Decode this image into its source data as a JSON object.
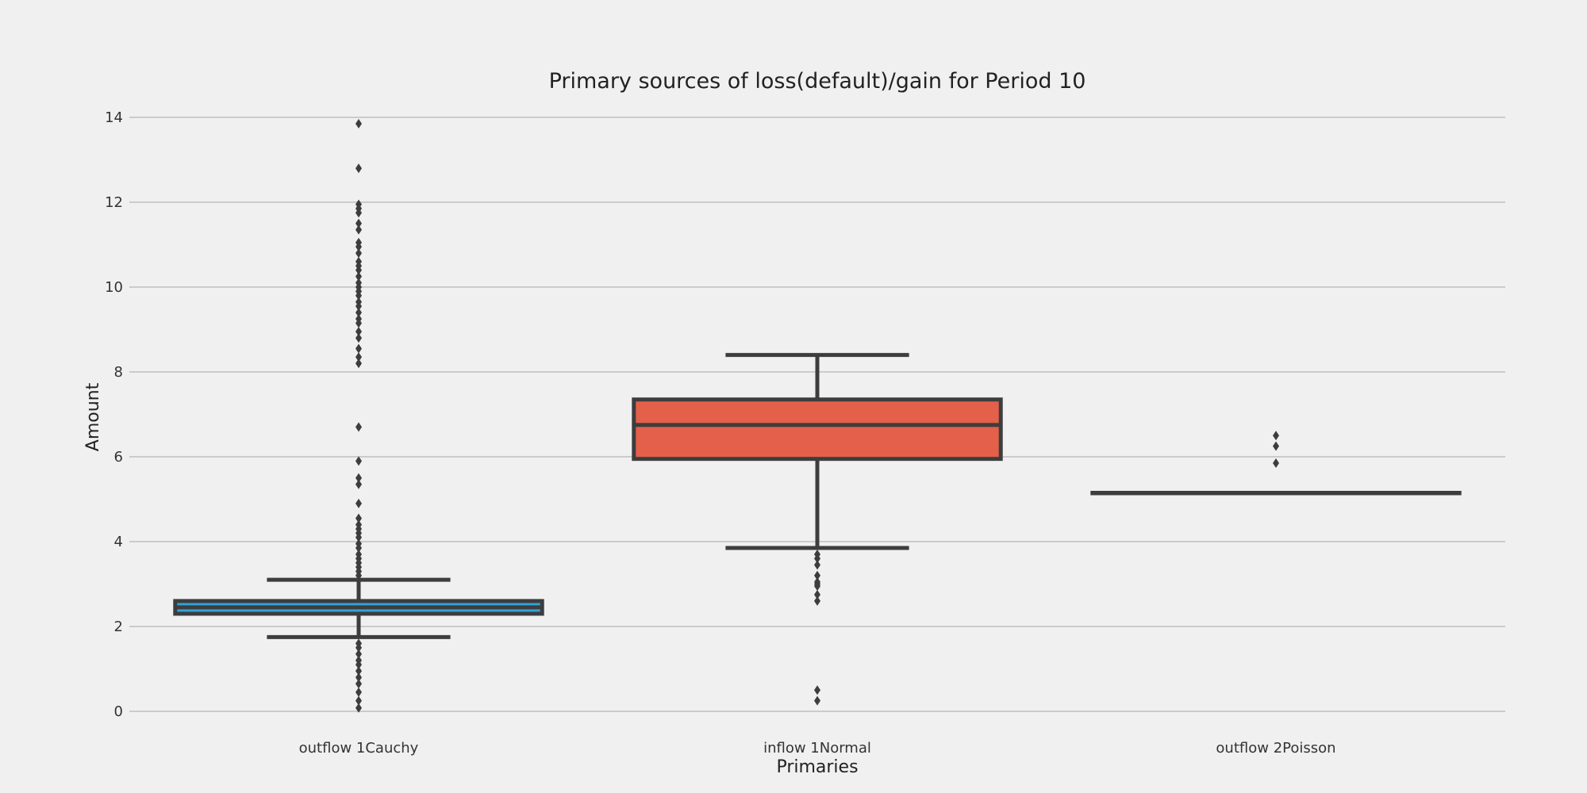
{
  "chart_data": {
    "type": "box",
    "title": "Primary sources of loss(default)/gain for Period 10",
    "xlabel": "Primaries",
    "ylabel": "Amount",
    "ylim": [
      0,
      14
    ],
    "yticks": [
      0,
      2,
      4,
      6,
      8,
      10,
      12,
      14
    ],
    "grid": true,
    "series": [
      {
        "name": "outflow 1Cauchy",
        "color": "#30a2da",
        "q1": 2.3,
        "median": 2.45,
        "q3": 2.6,
        "whisker_low": 1.75,
        "whisker_high": 3.1,
        "outliers": [
          13.85,
          12.8,
          11.95,
          11.85,
          11.75,
          11.5,
          11.35,
          11.05,
          10.95,
          10.8,
          10.6,
          10.5,
          10.4,
          10.25,
          10.1,
          10.0,
          9.9,
          9.8,
          9.65,
          9.55,
          9.4,
          9.25,
          9.15,
          8.95,
          8.8,
          8.55,
          8.35,
          8.2,
          6.7,
          5.9,
          5.5,
          5.35,
          4.9,
          4.55,
          4.4,
          4.3,
          4.2,
          4.1,
          3.95,
          3.85,
          3.7,
          3.6,
          3.5,
          3.4,
          3.3,
          3.2,
          1.6,
          1.5,
          1.35,
          1.2,
          1.1,
          0.95,
          0.8,
          0.65,
          0.45,
          0.25,
          0.08
        ]
      },
      {
        "name": "inflow 1Normal",
        "color": "#e5604a",
        "q1": 5.95,
        "median": 6.75,
        "q3": 7.35,
        "whisker_low": 3.85,
        "whisker_high": 8.4,
        "outliers": [
          3.7,
          3.6,
          3.45,
          3.2,
          3.05,
          3.0,
          2.95,
          2.75,
          2.6,
          0.5,
          0.25
        ]
      },
      {
        "name": "outflow 2Poisson",
        "color": "#30a2da",
        "q1": 5.15,
        "median": 5.15,
        "q3": 5.15,
        "whisker_low": 5.15,
        "whisker_high": 5.15,
        "outliers": [
          6.5,
          6.25,
          5.85
        ]
      }
    ]
  }
}
